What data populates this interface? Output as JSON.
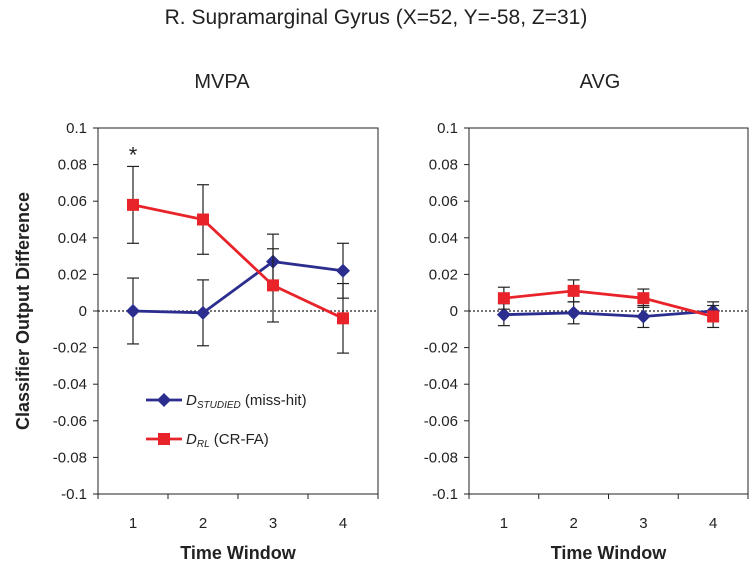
{
  "figure_title": "R. Supramarginal Gyrus (X=52,  Y=-58,  Z=31)",
  "ylabel": "Classifier Output Difference",
  "colors": {
    "studied": "#2b2e8f",
    "rl": "#e8242a",
    "axis": "#222222",
    "zero_line": "#222222"
  },
  "legend": {
    "studied": {
      "symbol": "D",
      "subscript": "STUDIED",
      "suffix": " (miss-hit)"
    },
    "rl": {
      "symbol": "D",
      "subscript": "RL",
      "suffix": " (CR-FA)"
    }
  },
  "chart_data": [
    {
      "type": "line",
      "title": "MVPA",
      "xlabel": "Time Window",
      "ylabel": "Classifier Output Difference",
      "categories": [
        "1",
        "2",
        "3",
        "4"
      ],
      "ylim": [
        -0.1,
        0.1
      ],
      "yticks": [
        "0.1",
        "0.08",
        "0.06",
        "0.04",
        "0.02",
        "0",
        "-0.02",
        "-0.04",
        "-0.06",
        "-0.08",
        "-0.1"
      ],
      "series": [
        {
          "name": "D_STUDIED (miss-hit)",
          "key": "studied",
          "marker": "diamond",
          "values": [
            0.0,
            -0.001,
            0.027,
            0.022
          ],
          "errors": [
            0.018,
            0.018,
            0.015,
            0.015
          ]
        },
        {
          "name": "D_RL (CR-FA)",
          "key": "rl",
          "marker": "square",
          "values": [
            0.058,
            0.05,
            0.014,
            -0.004
          ],
          "errors": [
            0.021,
            0.019,
            0.02,
            0.019
          ]
        }
      ],
      "annotations": [
        {
          "text": "*",
          "category": "1",
          "series": "rl"
        }
      ],
      "legend": true
    },
    {
      "type": "line",
      "title": "AVG",
      "xlabel": "Time Window",
      "ylabel": "",
      "categories": [
        "1",
        "2",
        "3",
        "4"
      ],
      "ylim": [
        -0.1,
        0.1
      ],
      "yticks": [
        "0.1",
        "0.08",
        "0.06",
        "0.04",
        "0.02",
        "0",
        "-0.02",
        "-0.04",
        "-0.06",
        "-0.08",
        "-0.1"
      ],
      "series": [
        {
          "name": "D_STUDIED (miss-hit)",
          "key": "studied",
          "marker": "diamond",
          "values": [
            -0.002,
            -0.001,
            -0.003,
            0.0
          ],
          "errors": [
            0.006,
            0.006,
            0.006,
            0.005
          ]
        },
        {
          "name": "D_RL (CR-FA)",
          "key": "rl",
          "marker": "square",
          "values": [
            0.007,
            0.011,
            0.007,
            -0.003
          ],
          "errors": [
            0.006,
            0.006,
            0.005,
            0.006
          ]
        }
      ],
      "annotations": [],
      "legend": false
    }
  ]
}
